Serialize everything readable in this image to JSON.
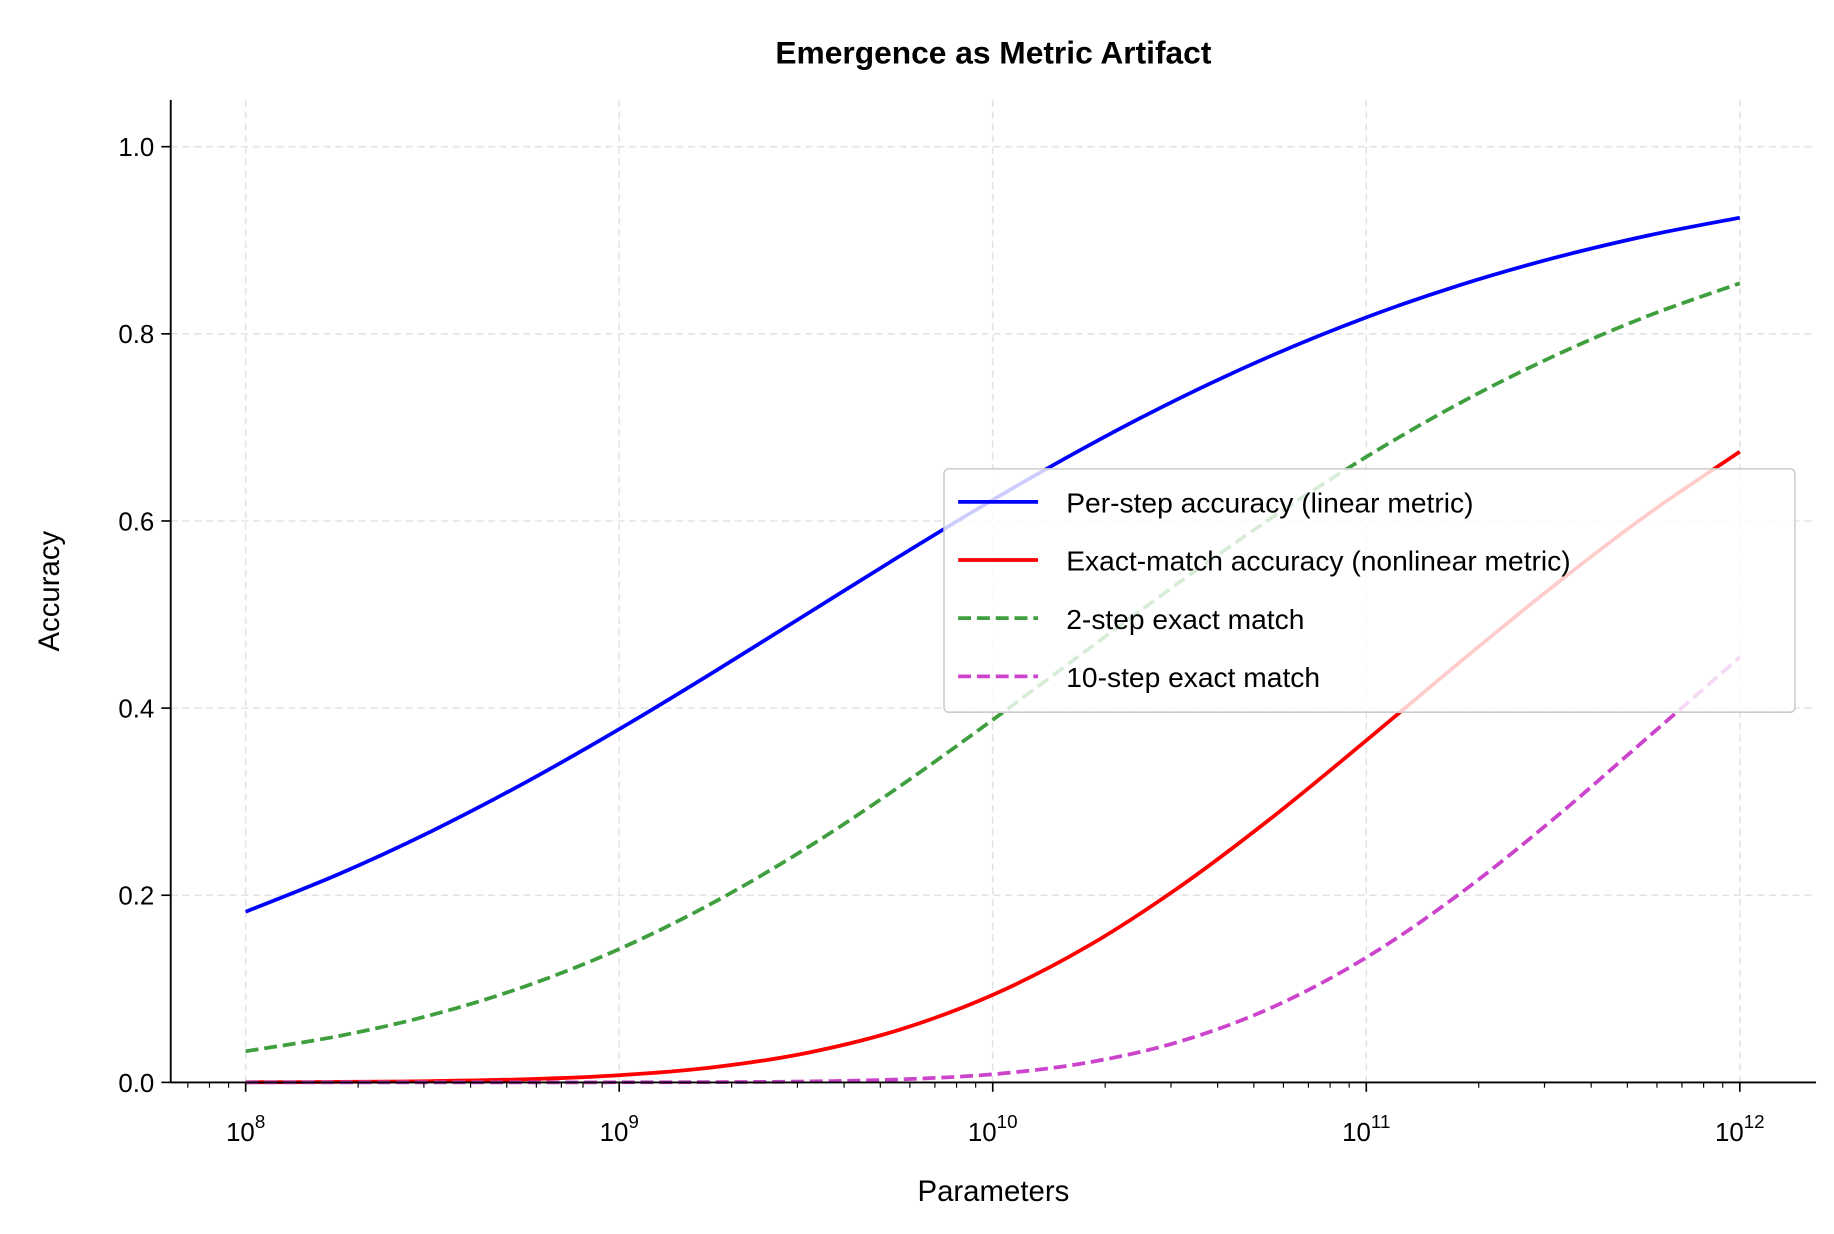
{
  "chart_data": {
    "type": "line",
    "title": "Emergence as Metric Artifact",
    "xlabel": "Parameters",
    "ylabel": "Accuracy",
    "xscale": "log",
    "xlim": [
      63000000.0,
      1600000000000.0
    ],
    "ylim": [
      0,
      1.05
    ],
    "xticks": [
      100000000.0,
      1000000000.0,
      10000000000.0,
      100000000000.0,
      1000000000000.0
    ],
    "xtick_labels": [
      {
        "base": "10",
        "exp": "8"
      },
      {
        "base": "10",
        "exp": "9"
      },
      {
        "base": "10",
        "exp": "10"
      },
      {
        "base": "10",
        "exp": "11"
      },
      {
        "base": "10",
        "exp": "12"
      }
    ],
    "yticks": [
      0,
      0.2,
      0.4,
      0.6,
      0.8,
      1.0
    ],
    "ytick_labels": [
      "0.0",
      "0.2",
      "0.4",
      "0.6",
      "0.8",
      "1.0"
    ],
    "grid": true,
    "legend_position": "center-right",
    "x": [
      100000000.0,
      177800000.0,
      316200000.0,
      562300000.0,
      1000000000.0,
      1778000000.0,
      3162000000.0,
      5623000000.0,
      10000000000.0,
      17780000000.0,
      31620000000.0,
      56230000000.0,
      100000000000.0,
      177800000000.0,
      316200000000.0,
      562300000000.0,
      1000000000000.0
    ],
    "series": [
      {
        "name": "Per-step accuracy (linear metric)",
        "color": "#0000ff",
        "dash": "solid",
        "values": [
          0.1824,
          0.2227,
          0.2689,
          0.3208,
          0.3775,
          0.4378,
          0.5,
          0.5622,
          0.6225,
          0.6792,
          0.7311,
          0.7773,
          0.8176,
          0.852,
          0.8808,
          0.9047,
          0.9241
        ]
      },
      {
        "name": "Exact-match accuracy (nonlinear metric)",
        "color": "#ff0000",
        "dash": "solid",
        "values": [
          0.0002,
          0.0005,
          0.0014,
          0.0034,
          0.0077,
          0.0161,
          0.0313,
          0.0562,
          0.0935,
          0.1445,
          0.2089,
          0.2838,
          0.3654,
          0.4489,
          0.5301,
          0.6061,
          0.674
        ]
      },
      {
        "name": "2-step exact match",
        "color": "#3f9f3f",
        "dash": "dashed",
        "values": [
          0.0333,
          0.0496,
          0.0723,
          0.1029,
          0.1425,
          0.1917,
          0.25,
          0.3161,
          0.3875,
          0.4613,
          0.5345,
          0.6042,
          0.6685,
          0.7259,
          0.7758,
          0.8185,
          0.854
        ]
      },
      {
        "name": "10-step exact match",
        "color": "#cc44cc",
        "dash": "dashed",
        "values": [
          0.0,
          0.0,
          0.0,
          0.0,
          0.0001,
          0.0003,
          0.001,
          0.0032,
          0.0087,
          0.0209,
          0.0436,
          0.0805,
          0.1335,
          0.2015,
          0.281,
          0.3674,
          0.4543
        ]
      }
    ]
  }
}
